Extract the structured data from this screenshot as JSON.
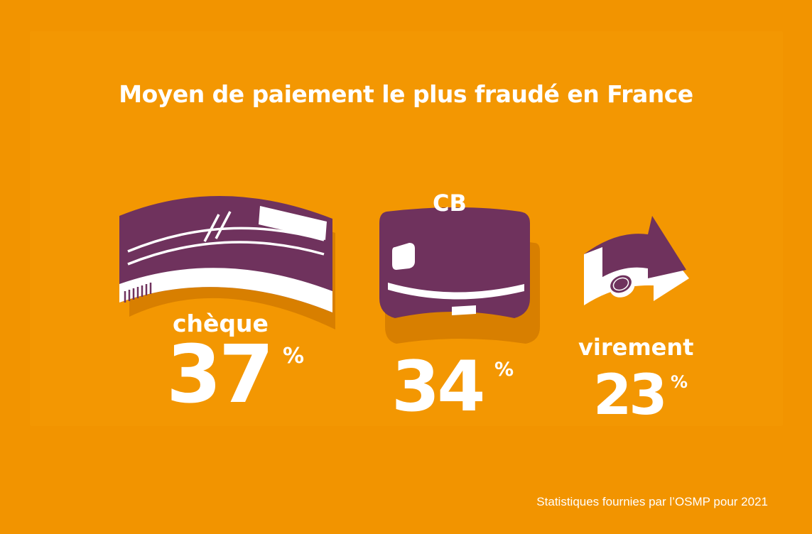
{
  "title": "Moyen de paiement le plus fraudé en France",
  "source": "Statistiques fournies par l’OSMP pour 2021",
  "colors": {
    "background": "#f29400",
    "panel": "#f39702",
    "purple": "#6f325d",
    "shadow": "#d87f00",
    "text": "#ffffff"
  },
  "chart_data": {
    "type": "bar",
    "categories": [
      "chèque",
      "CB",
      "virement"
    ],
    "values": [
      37,
      34,
      23
    ],
    "unit": "%",
    "title": "Moyen de paiement le plus fraudé en France"
  },
  "items": [
    {
      "label": "chèque",
      "value": "37",
      "unit": "%",
      "icon": "cheque-icon"
    },
    {
      "label": "CB",
      "value": "34",
      "unit": "%",
      "icon": "credit-card-icon"
    },
    {
      "label": "virement",
      "value": "23",
      "unit": "%",
      "icon": "transfer-arrow-icon"
    }
  ]
}
